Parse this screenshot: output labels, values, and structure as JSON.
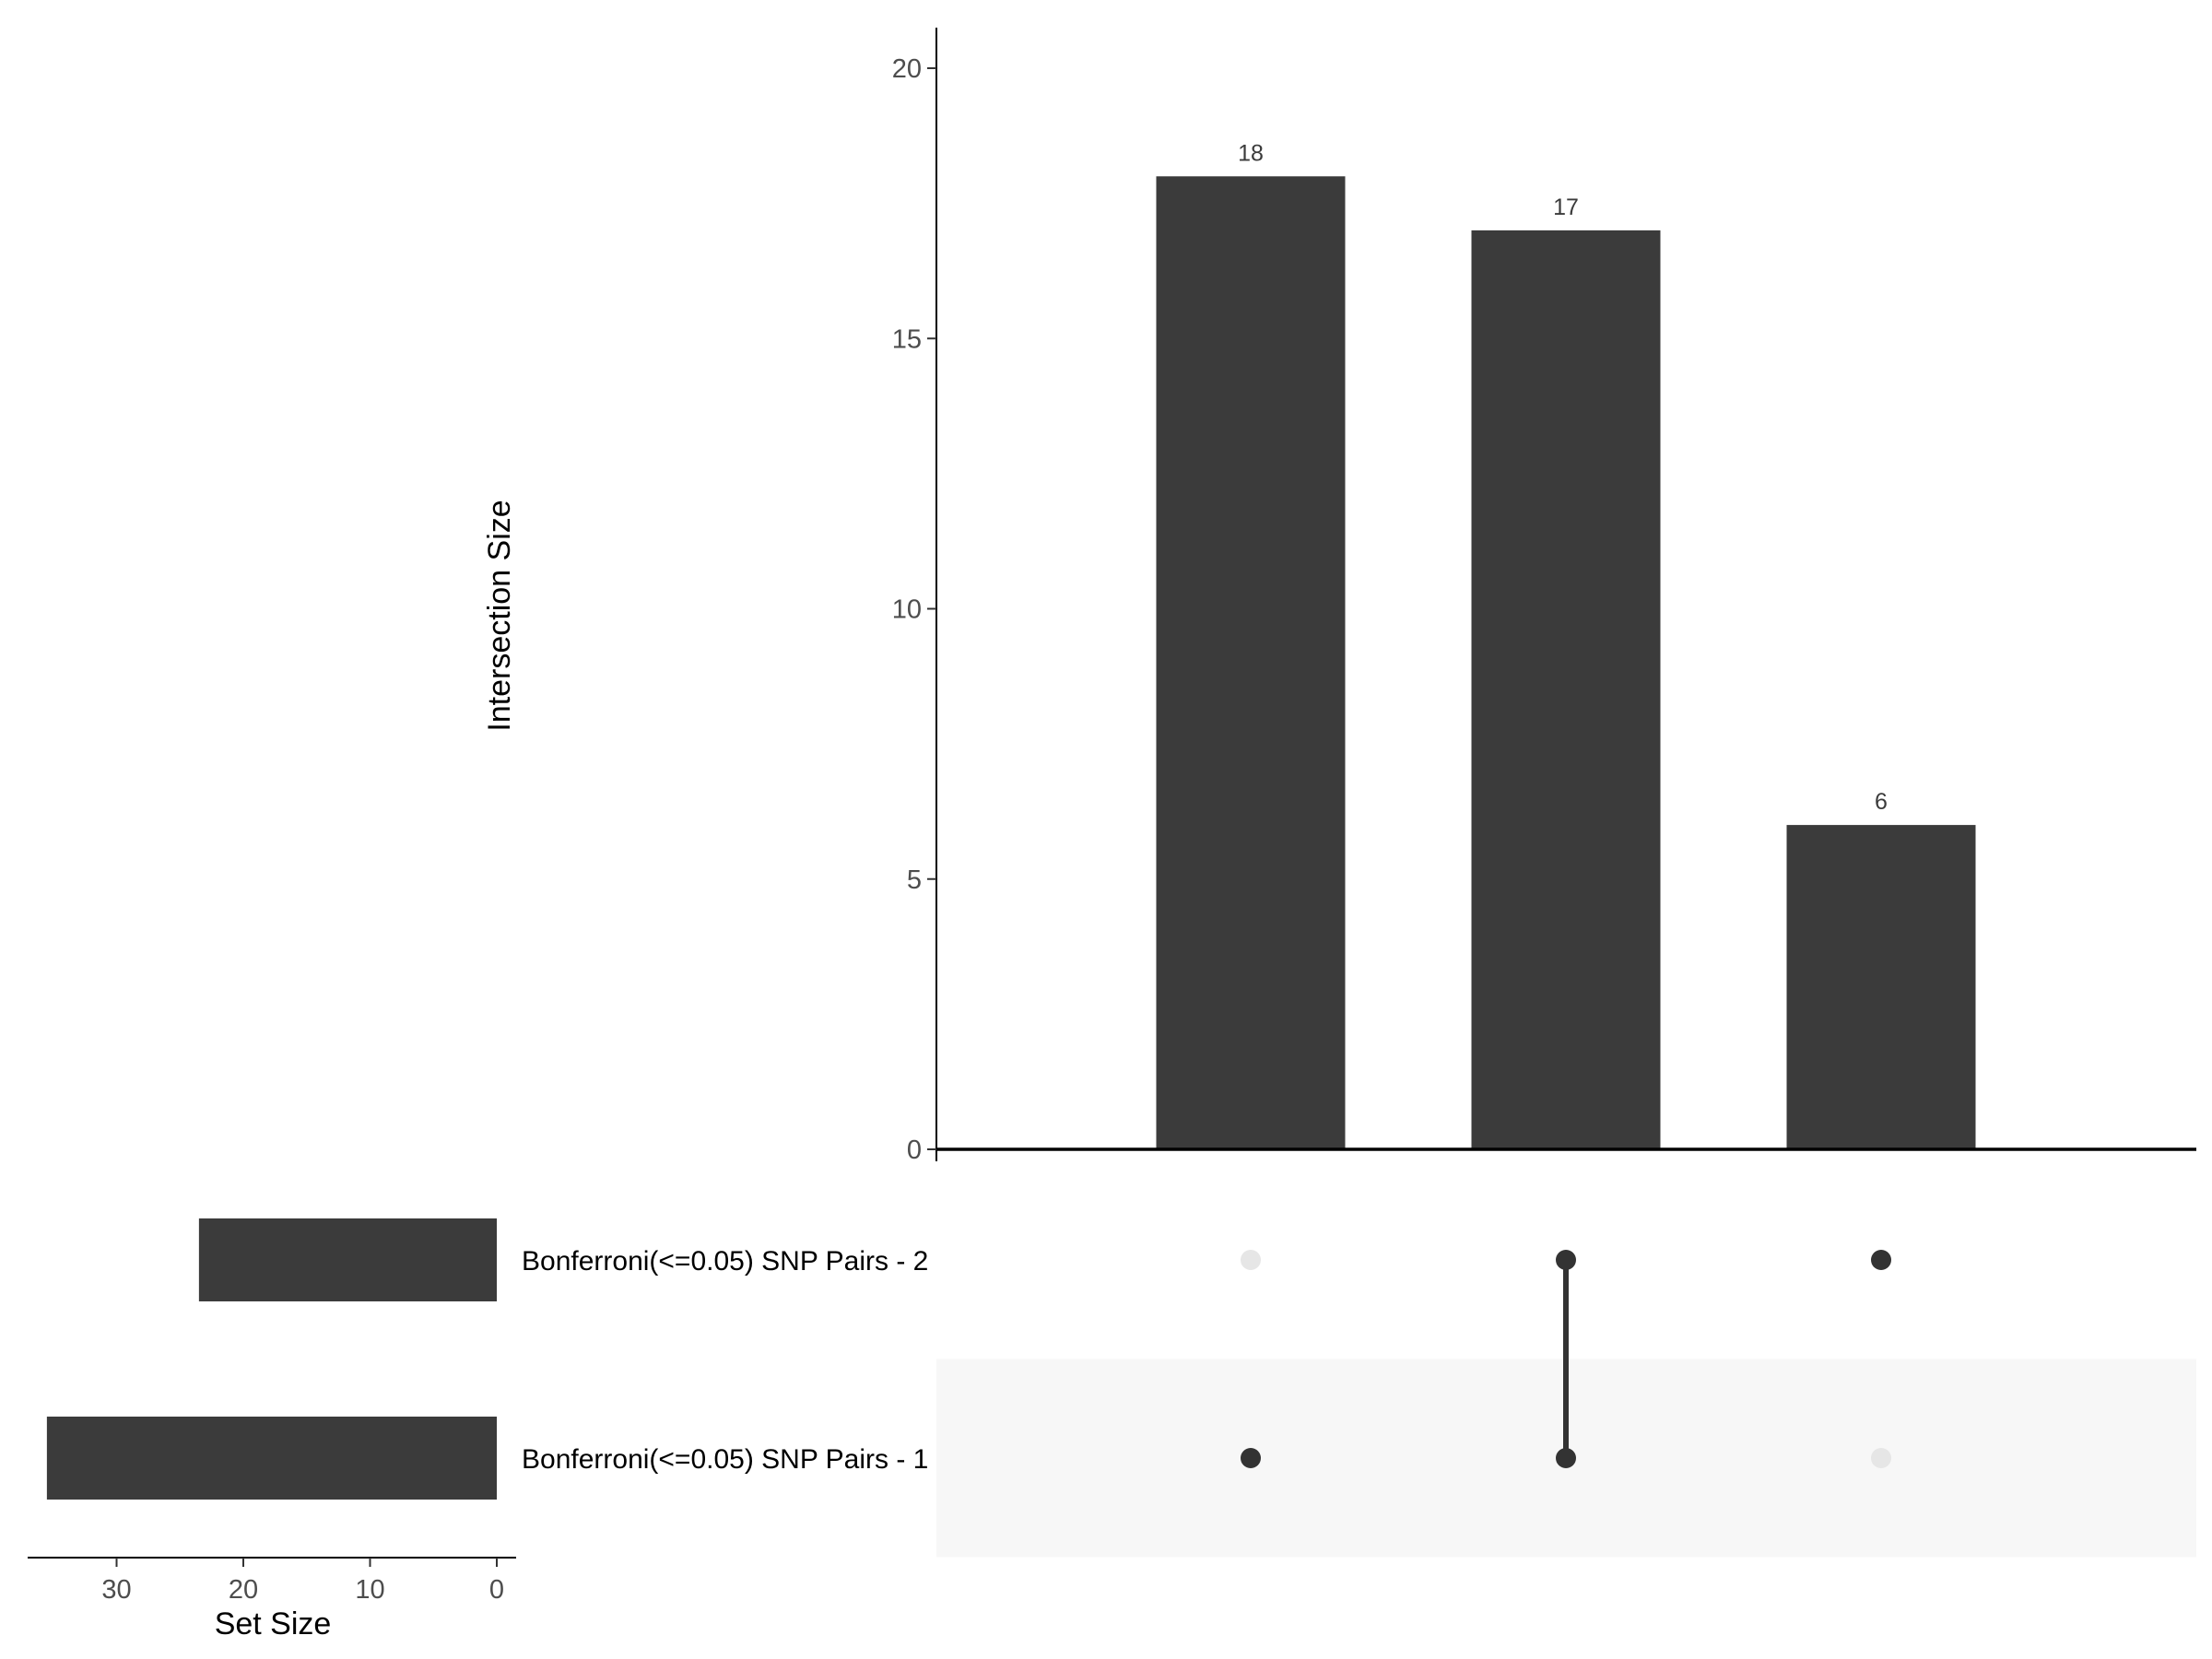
{
  "chart_data": {
    "type": "bar",
    "subtype": "upset",
    "intersection_axis": {
      "title": "Intersection Size",
      "ylim": [
        0,
        21
      ],
      "ticks": [
        0,
        5,
        10,
        15,
        20
      ]
    },
    "intersections": [
      {
        "value": 18,
        "label": "18",
        "members": [
          "Bonferroni(<=0.05) SNP Pairs - 1"
        ]
      },
      {
        "value": 17,
        "label": "17",
        "members": [
          "Bonferroni(<=0.05) SNP Pairs - 2",
          "Bonferroni(<=0.05) SNP Pairs - 1"
        ]
      },
      {
        "value": 6,
        "label": "6",
        "members": [
          "Bonferroni(<=0.05) SNP Pairs - 2"
        ]
      }
    ],
    "sets": [
      {
        "name": "Bonferroni(<=0.05) SNP Pairs - 2",
        "size": 23.5
      },
      {
        "name": "Bonferroni(<=0.05) SNP Pairs - 1",
        "size": 35.5
      }
    ],
    "set_size_axis": {
      "title": "Set Size",
      "xlim": [
        0,
        38
      ],
      "ticks": [
        30,
        20,
        10,
        0
      ],
      "reversed": true
    },
    "colors": {
      "bar": "#3b3b3b",
      "dot_active": "#333333",
      "dot_inactive": "#e6e6e6",
      "stripe": "#f7f7f7"
    },
    "grid": false,
    "legend": "none"
  }
}
